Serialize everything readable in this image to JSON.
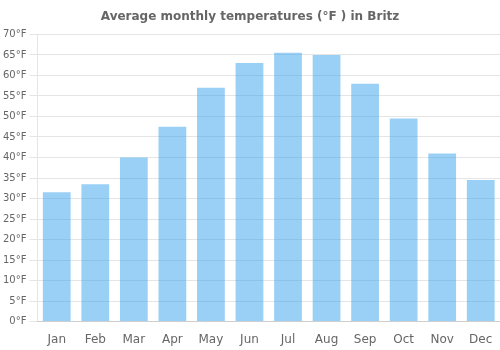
{
  "chart_data": {
    "type": "bar",
    "title": "Average monthly temperatures (°F ) in Britz",
    "categories": [
      "Jan",
      "Feb",
      "Mar",
      "Apr",
      "May",
      "Jun",
      "Jul",
      "Aug",
      "Sep",
      "Oct",
      "Nov",
      "Dec"
    ],
    "values": [
      31.5,
      33.5,
      40.0,
      47.5,
      57.0,
      63.0,
      65.5,
      65.0,
      58.0,
      49.5,
      41.0,
      34.5
    ],
    "ylim": [
      0,
      70
    ],
    "yticks": [
      {
        "value": 0,
        "label": "0°F"
      },
      {
        "value": 5,
        "label": "5°F"
      },
      {
        "value": 10,
        "label": "10°F"
      },
      {
        "value": 15,
        "label": "15°F"
      },
      {
        "value": 20,
        "label": "20°F"
      },
      {
        "value": 25,
        "label": "25°F"
      },
      {
        "value": 30,
        "label": "30°F"
      },
      {
        "value": 35,
        "label": "35°F"
      },
      {
        "value": 40,
        "label": "40°F"
      },
      {
        "value": 45,
        "label": "45°F"
      },
      {
        "value": 50,
        "label": "50°F"
      },
      {
        "value": 55,
        "label": "55°F"
      },
      {
        "value": 60,
        "label": "60°F"
      },
      {
        "value": 65,
        "label": "65°F"
      },
      {
        "value": 70,
        "label": "70°F"
      }
    ],
    "grid": true
  }
}
